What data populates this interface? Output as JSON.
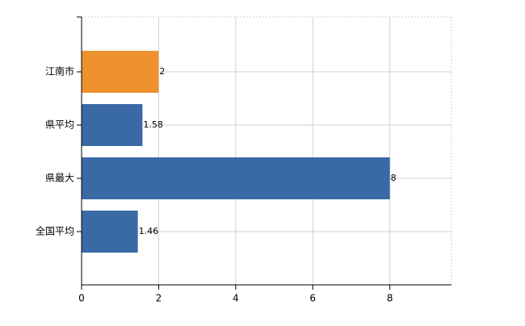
{
  "chart_data": {
    "type": "bar",
    "orientation": "horizontal",
    "categories": [
      "江南市",
      "県平均",
      "県最大",
      "全国平均"
    ],
    "values": [
      2,
      1.58,
      8,
      1.46
    ],
    "colors": [
      "#f0912f",
      "#3a6aa6",
      "#3a6aa6",
      "#3a6aa6"
    ],
    "xlim": [
      0,
      9.6
    ],
    "xticks": [
      0,
      2,
      4,
      6,
      8
    ],
    "grid": true
  }
}
